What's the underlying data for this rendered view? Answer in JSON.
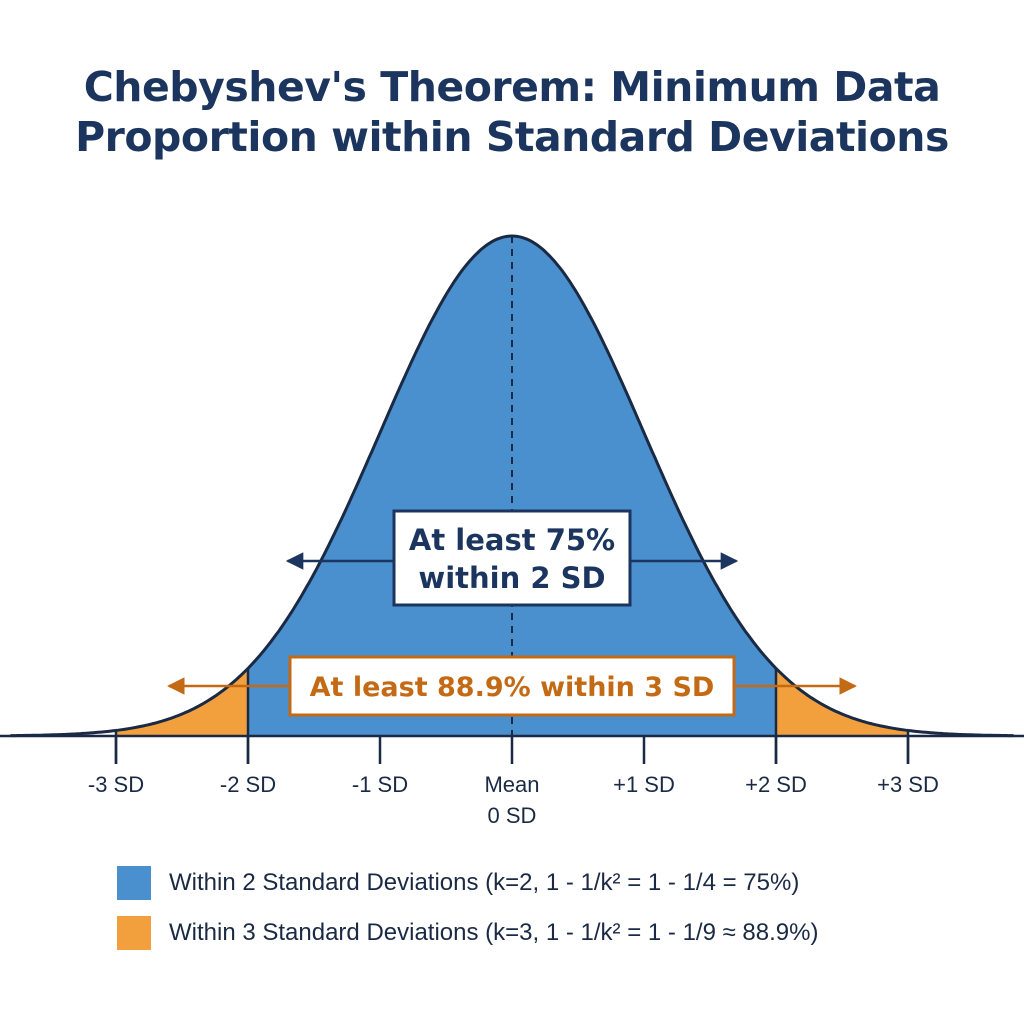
{
  "chart_data": {
    "type": "area",
    "title": "Chebyshev's Theorem: Minimum Data Proportion within Standard Deviations",
    "title_lines": [
      "Chebyshev's Theorem: Minimum Data",
      "Proportion within Standard Deviations"
    ],
    "x_range": [
      -3.8,
      3.8
    ],
    "ticks": [
      {
        "value": -3,
        "label": "-3 SD"
      },
      {
        "value": -2,
        "label": "-2 SD"
      },
      {
        "value": -1,
        "label": "-1 SD"
      },
      {
        "value": 0,
        "label": "Mean",
        "sublabel": "0 SD"
      },
      {
        "value": 1,
        "label": "+1 SD"
      },
      {
        "value": 2,
        "label": "+2 SD"
      },
      {
        "value": 3,
        "label": "+3 SD"
      }
    ],
    "regions": [
      {
        "name": "Within 2 Standard Deviations",
        "from": -2,
        "to": 2,
        "color": "#4a8fce"
      },
      {
        "name": "Within 3 Standard Deviations",
        "from": -3,
        "to": 3,
        "color": "#f2a03d"
      }
    ],
    "annotations": {
      "two_sd": {
        "lines": [
          "At least 75%",
          "within 2 SD"
        ],
        "span": [
          -1.7,
          1.7
        ]
      },
      "three_sd": {
        "text": "At least 88.9% within 3 SD",
        "span": [
          -2.6,
          2.6
        ]
      }
    },
    "legend": [
      {
        "label": "Within 2 Standard Deviations (k=2, 1 - 1/k² = 1 - 1/4 = 75%)",
        "color": "#4a8fce"
      },
      {
        "label": "Within 3 Standard Deviations (k=3, 1 - 1/k² = 1 - 1/9 ≈ 88.9%)",
        "color": "#f2a03d"
      }
    ],
    "grid": false,
    "colors": {
      "curve": "#1b2a44",
      "axis": "#1b2a44",
      "blue_text": "#1b355e",
      "orange_text": "#c46a14"
    }
  }
}
